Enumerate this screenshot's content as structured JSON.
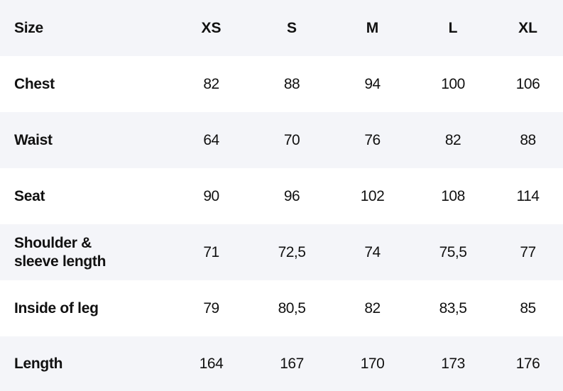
{
  "table": {
    "header": {
      "label": "Size",
      "sizes": [
        "XS",
        "S",
        "M",
        "L",
        "XL"
      ]
    },
    "rows": [
      {
        "label": "Chest",
        "values": [
          "82",
          "88",
          "94",
          "100",
          "106"
        ]
      },
      {
        "label": "Waist",
        "values": [
          "64",
          "70",
          "76",
          "82",
          "88"
        ]
      },
      {
        "label": "Seat",
        "values": [
          "90",
          "96",
          "102",
          "108",
          "114"
        ]
      },
      {
        "label": "Shoulder & sleeve length",
        "values": [
          "71",
          "72,5",
          "74",
          "75,5",
          "77"
        ]
      },
      {
        "label": "Inside of leg",
        "values": [
          "79",
          "80,5",
          "82",
          "83,5",
          "85"
        ]
      },
      {
        "label": "Length",
        "values": [
          "164",
          "167",
          "170",
          "173",
          "176"
        ]
      }
    ]
  },
  "colors": {
    "shaded_row": "#f4f5f9",
    "text": "#111111",
    "background": "#ffffff"
  }
}
